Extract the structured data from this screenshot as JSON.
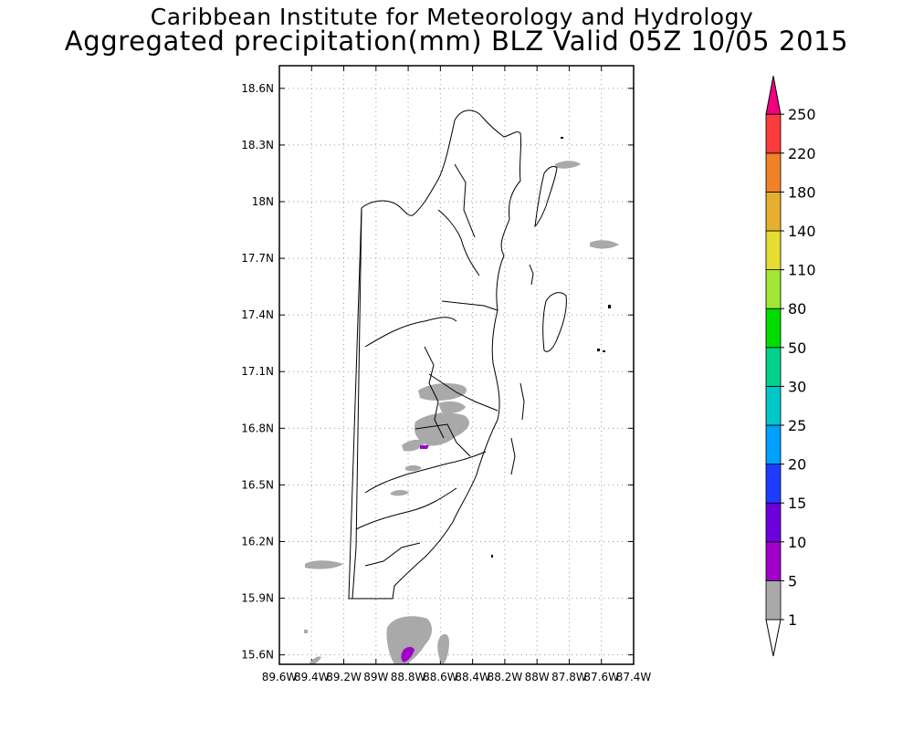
{
  "title": {
    "line1": "Caribbean Institute for Meteorology and Hydrology",
    "line2": "Aggregated precipitation(mm) BLZ Valid 05Z 10/05 2015"
  },
  "map": {
    "lat_ticks": [
      "18.6N",
      "18.3N",
      "18N",
      "17.7N",
      "17.4N",
      "17.1N",
      "16.8N",
      "16.5N",
      "16.2N",
      "15.9N",
      "15.6N"
    ],
    "lon_ticks": [
      "89.6W",
      "89.4W",
      "89.2W",
      "89W",
      "88.8W",
      "88.6W",
      "88.4W",
      "88.2W",
      "88W",
      "87.8W",
      "87.6W",
      "87.4W"
    ],
    "lon_range": [
      -89.6,
      -87.4
    ],
    "lat_range": [
      15.55,
      18.72
    ],
    "grid": true,
    "precip_colors": {
      "1-5": "#a9a9a9",
      "5-10": "#a000c8"
    }
  },
  "colorbar": {
    "labels": [
      "1",
      "5",
      "10",
      "15",
      "20",
      "25",
      "30",
      "50",
      "80",
      "110",
      "140",
      "180",
      "220",
      "250"
    ],
    "colors": [
      "#ffffff",
      "#a9a9a9",
      "#a000c8",
      "#6e00dc",
      "#1e3cff",
      "#00a0ff",
      "#00c8c8",
      "#00d28c",
      "#00dc00",
      "#a0e632",
      "#e6dc32",
      "#e6af2d",
      "#f08228",
      "#fa3c3c",
      "#f00082"
    ]
  }
}
